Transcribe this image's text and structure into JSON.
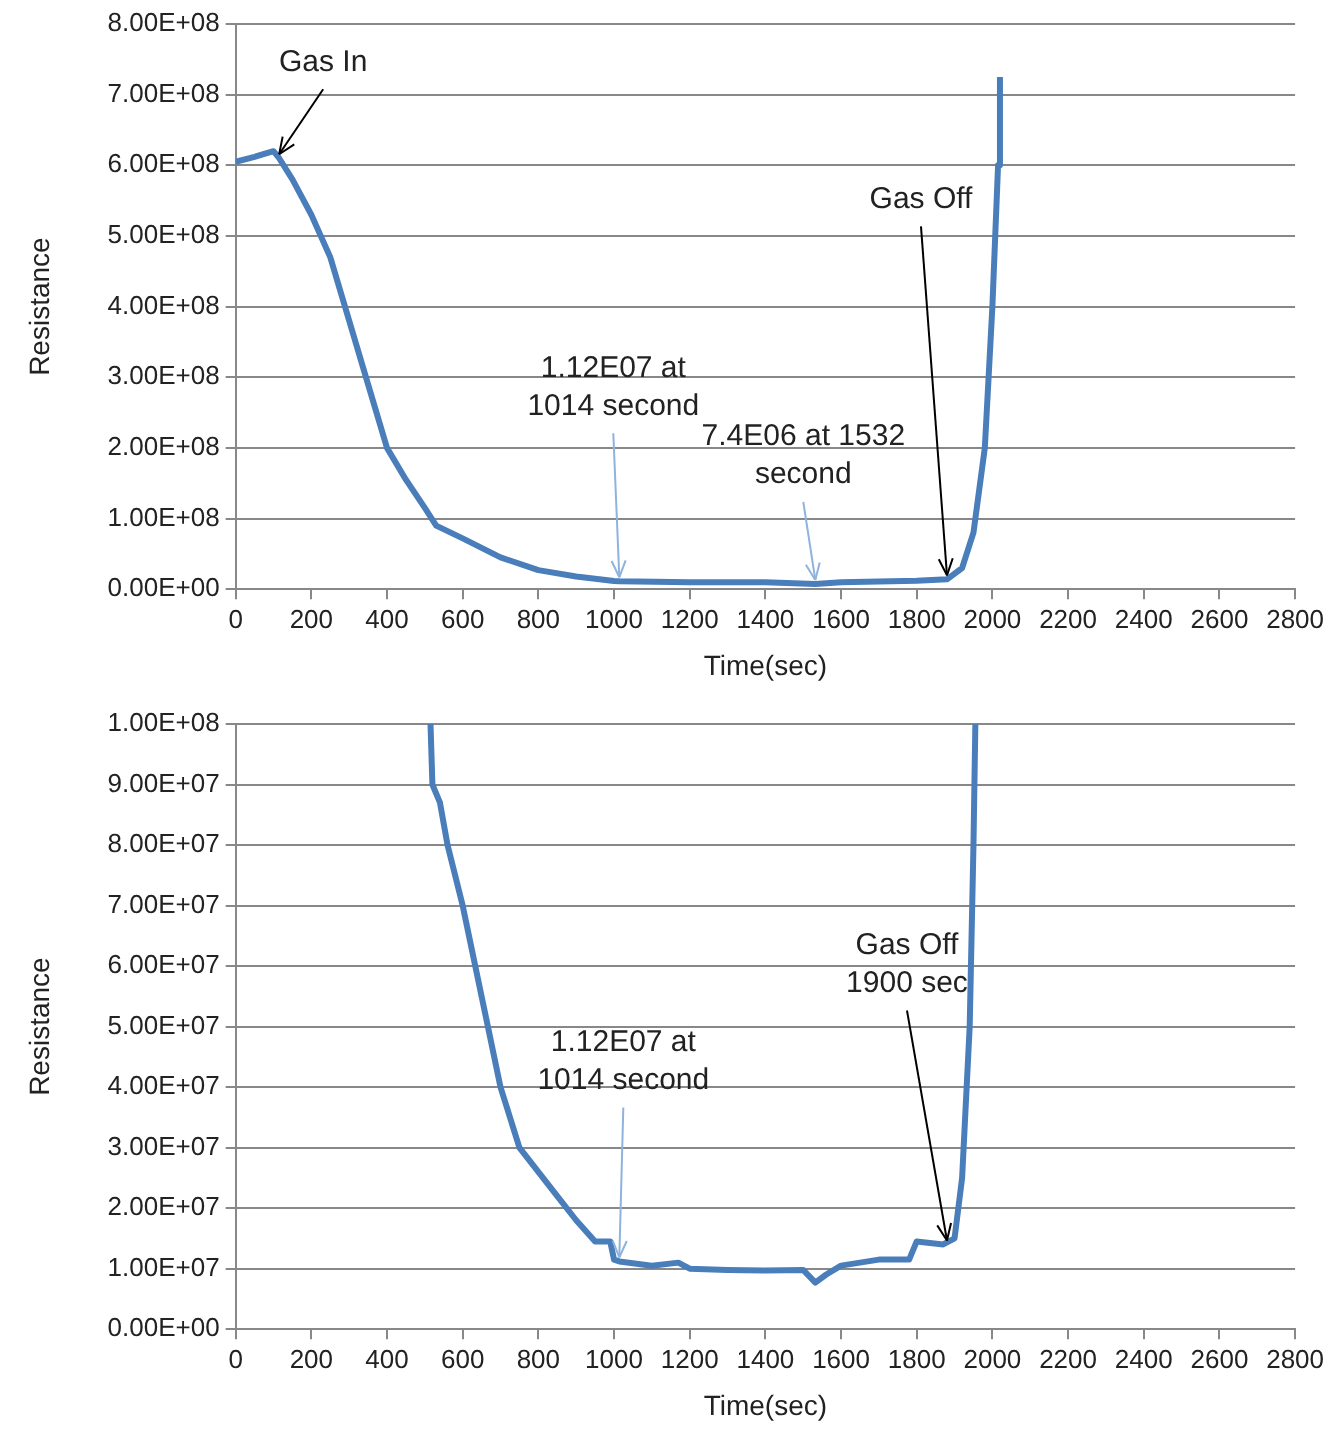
{
  "chart_data": [
    {
      "type": "line",
      "xlabel": "Time(sec)",
      "ylabel": "Resistance",
      "grid": "y",
      "marker": "none",
      "line_style": "solid",
      "xlim": [
        0,
        2800
      ],
      "xticks": [
        0,
        200,
        400,
        600,
        800,
        1000,
        1200,
        1400,
        1600,
        1800,
        2000,
        2200,
        2400,
        2600,
        2800
      ],
      "ylim": [
        0,
        800000000
      ],
      "yticks": [
        {
          "value": 0,
          "label": "0.00E+00"
        },
        {
          "value": 100000000,
          "label": "1.00E+08"
        },
        {
          "value": 200000000,
          "label": "2.00E+08"
        },
        {
          "value": 300000000,
          "label": "3.00E+08"
        },
        {
          "value": 400000000,
          "label": "4.00E+08"
        },
        {
          "value": 500000000,
          "label": "5.00E+08"
        },
        {
          "value": 600000000,
          "label": "6.00E+08"
        },
        {
          "value": 700000000,
          "label": "7.00E+08"
        },
        {
          "value": 800000000,
          "label": "8.00E+08"
        }
      ],
      "series": [
        {
          "color": "#4a7ebb",
          "x": [
            0,
            50,
            100,
            115,
            150,
            200,
            250,
            300,
            350,
            400,
            450,
            500,
            530,
            600,
            700,
            800,
            900,
            1000,
            1014,
            1200,
            1400,
            1532,
            1600,
            1800,
            1880,
            1920,
            1950,
            1980,
            2000,
            2015,
            2020
          ],
          "values": [
            605000000,
            612000000,
            620000000,
            610000000,
            580000000,
            530000000,
            470000000,
            380000000,
            290000000,
            200000000,
            155000000,
            115000000,
            90000000,
            72000000,
            45000000,
            27000000,
            18000000,
            11500000,
            11200000,
            10000000,
            9700000,
            7400000,
            10000000,
            12000000,
            14000000,
            30000000,
            80000000,
            200000000,
            400000000,
            600000000,
            725000000
          ]
        }
      ],
      "annotations": [
        {
          "text": "Gas In",
          "x": 115,
          "y": 610000000
        },
        {
          "text": "1.12E07 at 1014 second",
          "x": 1014,
          "y": 11200000
        },
        {
          "text": "7.4E06 at 1532 second",
          "x": 1532,
          "y": 7400000
        },
        {
          "text": "Gas Off",
          "x": 1880,
          "y": 14000000
        }
      ]
    },
    {
      "type": "line",
      "xlabel": "Time(sec)",
      "ylabel": "Resistance",
      "grid": "y",
      "marker": "none",
      "line_style": "solid",
      "xlim": [
        0,
        2800
      ],
      "xticks": [
        0,
        200,
        400,
        600,
        800,
        1000,
        1200,
        1400,
        1600,
        1800,
        2000,
        2200,
        2400,
        2600,
        2800
      ],
      "ylim": [
        0,
        100000000
      ],
      "yticks": [
        {
          "value": 0,
          "label": "0.00E+00"
        },
        {
          "value": 10000000,
          "label": "1.00E+07"
        },
        {
          "value": 20000000,
          "label": "2.00E+07"
        },
        {
          "value": 30000000,
          "label": "3.00E+07"
        },
        {
          "value": 40000000,
          "label": "4.00E+07"
        },
        {
          "value": 50000000,
          "label": "5.00E+07"
        },
        {
          "value": 60000000,
          "label": "6.00E+07"
        },
        {
          "value": 70000000,
          "label": "7.00E+07"
        },
        {
          "value": 80000000,
          "label": "8.00E+07"
        },
        {
          "value": 90000000,
          "label": "9.00E+07"
        },
        {
          "value": 100000000,
          "label": "1.00E+08"
        }
      ],
      "series": [
        {
          "color": "#4a7ebb",
          "x": [
            515,
            520,
            540,
            560,
            600,
            650,
            700,
            750,
            800,
            850,
            900,
            950,
            990,
            1000,
            1014,
            1100,
            1170,
            1200,
            1300,
            1400,
            1500,
            1532,
            1560,
            1600,
            1700,
            1780,
            1800,
            1870,
            1900,
            1920,
            1940,
            1950,
            1955
          ],
          "values": [
            100000000,
            90000000,
            87000000,
            80000000,
            70000000,
            55000000,
            40000000,
            30000000,
            26000000,
            22000000,
            18000000,
            14500000,
            14500000,
            11500000,
            11200000,
            10500000,
            11000000,
            10000000,
            9800000,
            9700000,
            9800000,
            7700000,
            9000000,
            10500000,
            11500000,
            11500000,
            14500000,
            14000000,
            15000000,
            25000000,
            50000000,
            80000000,
            100000000
          ]
        }
      ],
      "annotations": [
        {
          "text": "1.12E07 at 1014 second",
          "x": 1014,
          "y": 11200000
        },
        {
          "text": "Gas Off 1900 sec",
          "x": 1880,
          "y": 14000000
        }
      ]
    }
  ]
}
